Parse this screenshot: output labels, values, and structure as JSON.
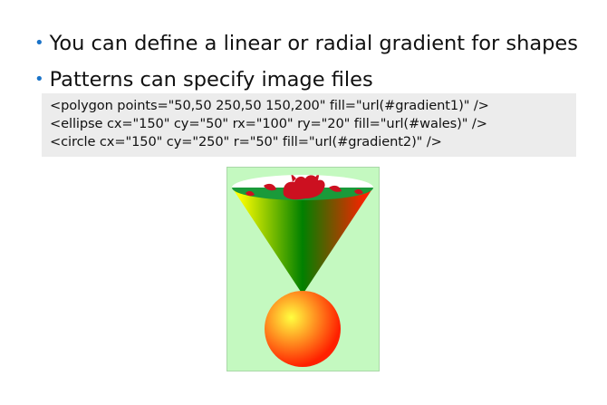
{
  "bullets": [
    {
      "text": "You can define a linear or radial gradient for shapes"
    },
    {
      "text": "Patterns can specify image files"
    }
  ],
  "code_lines": [
    "<polygon points=\"50,50 250,50 150,200\" fill=\"url(#gradient1)\" />",
    "<ellipse cx=\"150\" cy=\"50\" rx=\"100\" ry=\"20\" fill=\"url(#wales)\" />",
    "<circle cx=\"150\" cy=\"250\" r=\"50\" fill=\"url(#gradient2)\" />"
  ],
  "colors": {
    "bullet": "#1a73c8",
    "code_bg": "#ececec",
    "canvas_bg": "#c4f9c0",
    "gradient1": [
      "#ffff00",
      "#008000",
      "#ff2000"
    ],
    "gradient2": [
      "#ffff40",
      "#ff2000"
    ],
    "flag_white": "#ffffff",
    "flag_green": "#1a9a3a",
    "dragon_red": "#cc1020"
  },
  "illustration": {
    "polygon_icon": "cone-triangle",
    "ellipse_icon": "welsh-flag-ellipse",
    "circle_icon": "radial-gradient-circle"
  }
}
